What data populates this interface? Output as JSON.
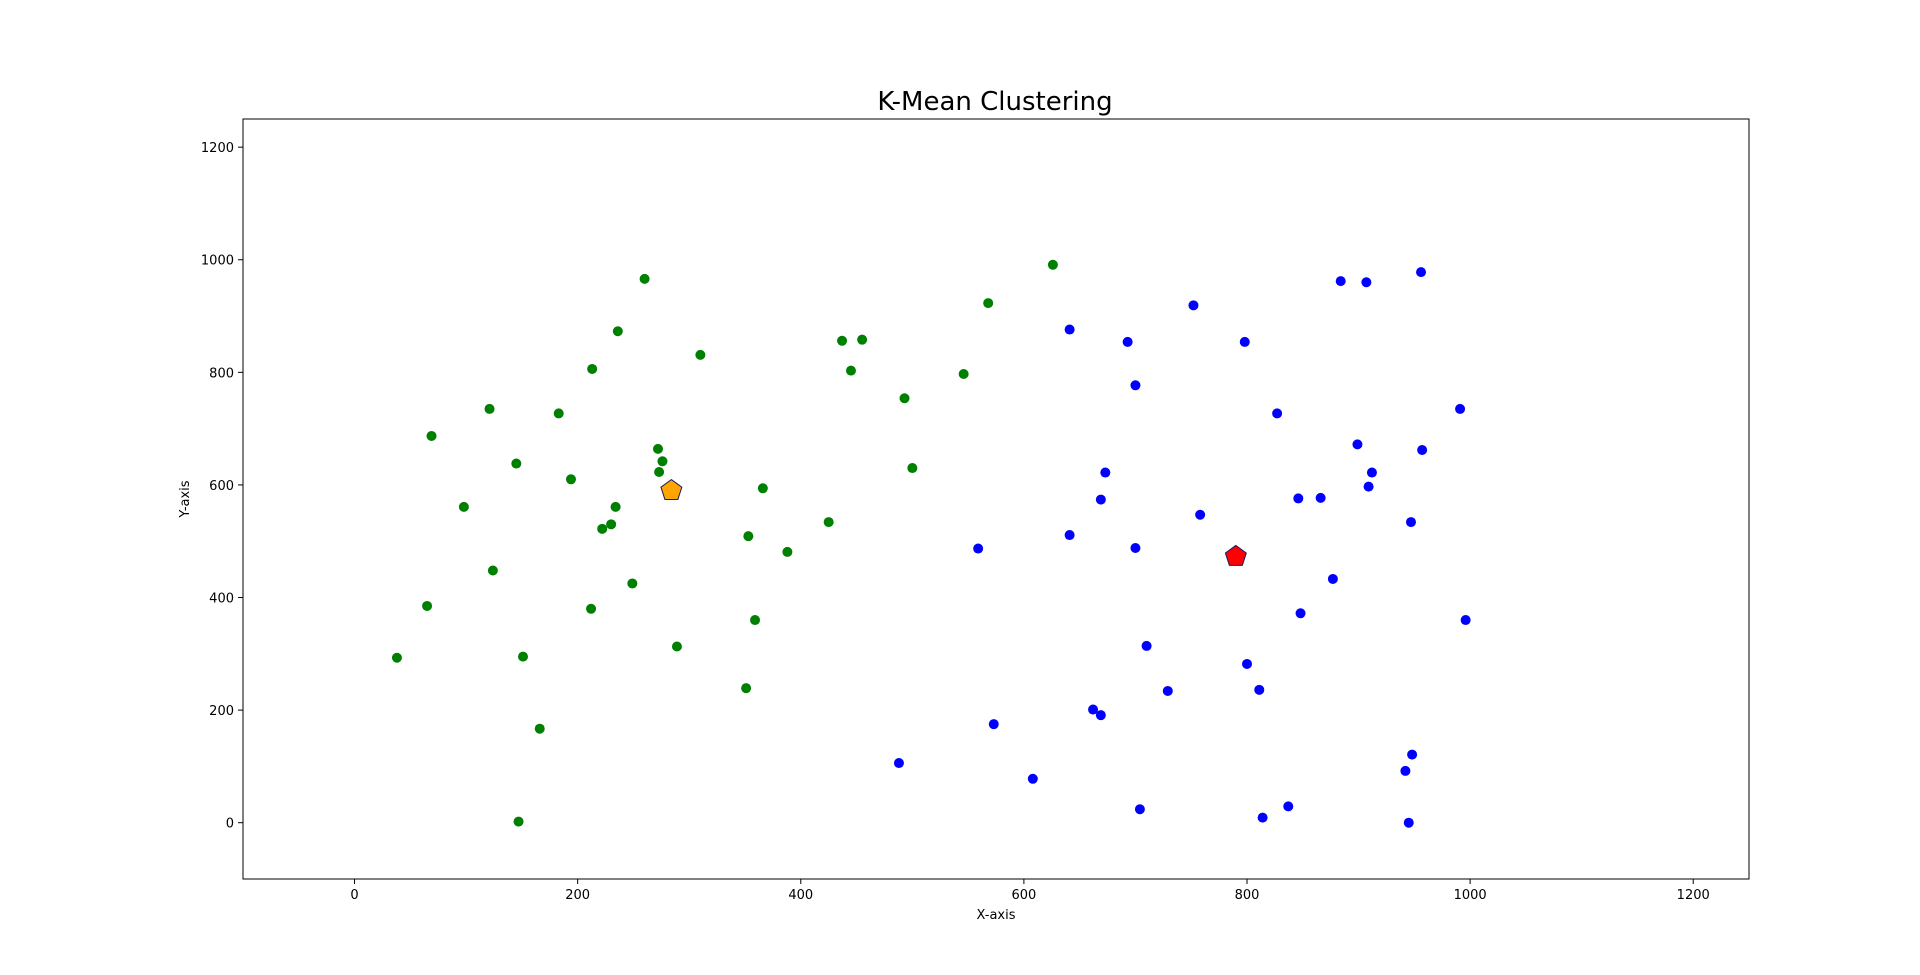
{
  "chart_data": {
    "type": "scatter",
    "title": "K-Mean Clustering",
    "xlabel": "X-axis",
    "ylabel": "Y-axis",
    "xlim": [
      -100,
      1250
    ],
    "ylim": [
      -100,
      1250
    ],
    "xticks": [
      0,
      200,
      400,
      600,
      800,
      1000,
      1200
    ],
    "yticks": [
      0,
      200,
      400,
      600,
      800,
      1000,
      1200
    ],
    "grid": false,
    "legend": "none",
    "series": [
      {
        "color": "#008000",
        "marker": "circle",
        "points": [
          [
            38,
            293
          ],
          [
            65,
            385
          ],
          [
            69,
            687
          ],
          [
            98,
            561
          ],
          [
            121,
            735
          ],
          [
            124,
            448
          ],
          [
            145,
            638
          ],
          [
            147,
            2
          ],
          [
            151,
            295
          ],
          [
            166,
            167
          ],
          [
            183,
            727
          ],
          [
            194,
            610
          ],
          [
            212,
            380
          ],
          [
            213,
            806
          ],
          [
            222,
            522
          ],
          [
            230,
            530
          ],
          [
            234,
            561
          ],
          [
            236,
            873
          ],
          [
            249,
            425
          ],
          [
            260,
            966
          ],
          [
            272,
            664
          ],
          [
            273,
            623
          ],
          [
            276,
            642
          ],
          [
            289,
            313
          ],
          [
            310,
            831
          ],
          [
            351,
            239
          ],
          [
            353,
            509
          ],
          [
            359,
            360
          ],
          [
            366,
            594
          ],
          [
            388,
            481
          ],
          [
            425,
            534
          ],
          [
            437,
            856
          ],
          [
            445,
            803
          ],
          [
            455,
            858
          ],
          [
            493,
            754
          ],
          [
            500,
            630
          ],
          [
            546,
            797
          ],
          [
            568,
            923
          ],
          [
            626,
            991
          ]
        ]
      },
      {
        "color": "#0000ff",
        "marker": "circle",
        "points": [
          [
            488,
            106
          ],
          [
            559,
            487
          ],
          [
            573,
            175
          ],
          [
            608,
            78
          ],
          [
            641,
            876
          ],
          [
            641,
            511
          ],
          [
            662,
            201
          ],
          [
            669,
            191
          ],
          [
            669,
            574
          ],
          [
            673,
            622
          ],
          [
            693,
            854
          ],
          [
            700,
            488
          ],
          [
            700,
            777
          ],
          [
            704,
            24
          ],
          [
            710,
            314
          ],
          [
            729,
            234
          ],
          [
            752,
            919
          ],
          [
            758,
            547
          ],
          [
            798,
            854
          ],
          [
            800,
            282
          ],
          [
            811,
            236
          ],
          [
            814,
            9
          ],
          [
            827,
            727
          ],
          [
            837,
            29
          ],
          [
            846,
            576
          ],
          [
            848,
            372
          ],
          [
            866,
            577
          ],
          [
            877,
            433
          ],
          [
            884,
            962
          ],
          [
            899,
            672
          ],
          [
            907,
            960
          ],
          [
            909,
            597
          ],
          [
            912,
            622
          ],
          [
            942,
            92
          ],
          [
            945,
            0
          ],
          [
            947,
            534
          ],
          [
            948,
            121
          ],
          [
            956,
            978
          ],
          [
            957,
            662
          ],
          [
            991,
            735
          ],
          [
            996,
            360
          ]
        ]
      }
    ],
    "centroids": [
      {
        "x": 284,
        "y": 590,
        "color": "#ffa500",
        "marker": "pentagon"
      },
      {
        "x": 790,
        "y": 473,
        "color": "#ff0000",
        "marker": "pentagon"
      }
    ]
  }
}
